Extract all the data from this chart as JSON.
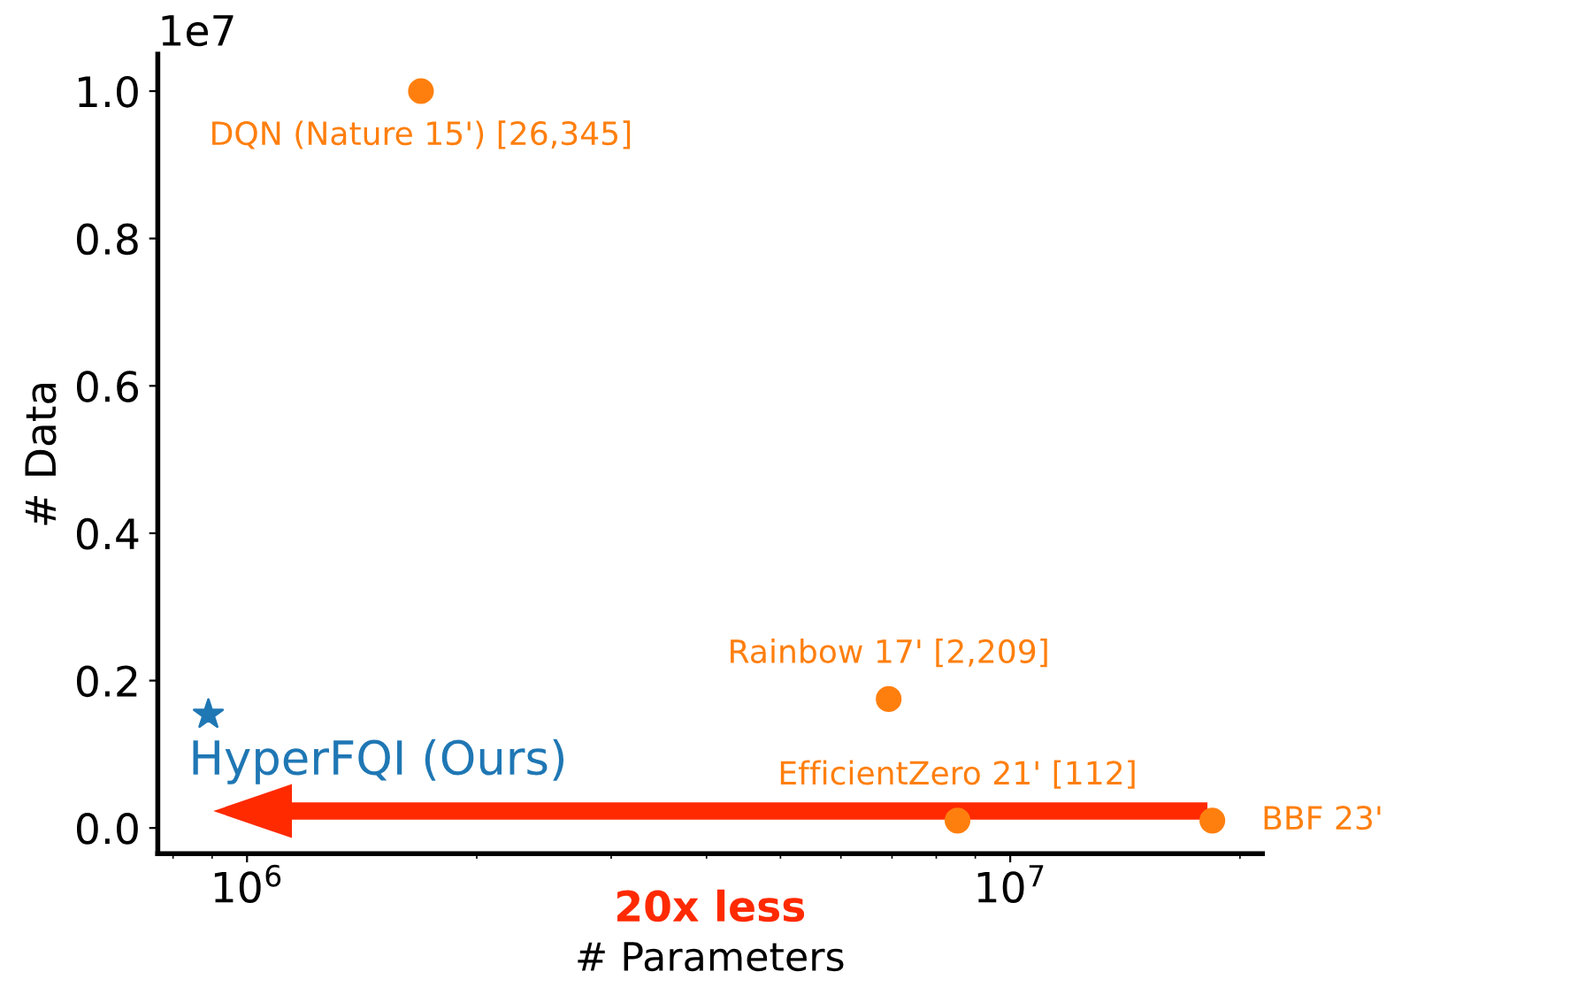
{
  "chart_data": {
    "type": "scatter",
    "xlabel": "# Parameters",
    "ylabel": "# Data",
    "log": "x",
    "xlim": [
      764000,
      21400000
    ],
    "ylim": [
      -0.035,
      1.05
    ],
    "xticks": [
      {
        "value": 1000000,
        "label": "10$^{6}$"
      },
      {
        "value": 10000000,
        "label": "10$^{7}$"
      }
    ],
    "yticks": [
      {
        "value": 0,
        "label": "0.0"
      },
      0.2,
      0.4,
      0.6,
      0.8,
      {
        "value": 1,
        "label": "1.0"
      }
    ],
    "grid": false,
    "legend": false,
    "series": [
      {
        "name": "HyperFQI (Ours)",
        "color": "#1f77b4",
        "marker": "star",
        "x": [
          890000
        ],
        "values": [
          0.154
        ]
      },
      {
        "name": "DQN (Nature 15') [26,345]",
        "color": "#ff7f0e",
        "marker": "circle",
        "x": [
          1690000
        ],
        "values": [
          1.0
        ]
      },
      {
        "name": "Rainbow 17' [2,209]",
        "color": "#ff7f0e",
        "marker": "circle",
        "x": [
          6930000
        ],
        "values": [
          0.175
        ]
      },
      {
        "name": "EfficientZero 21' [112]",
        "color": "#ff7f0e",
        "marker": "circle",
        "x": [
          8530000
        ],
        "values": [
          0.01
        ]
      },
      {
        "name": "BBF 23'",
        "color": "#ff7f0e",
        "marker": "circle",
        "x": [
          18400000
        ],
        "values": [
          0.01
        ]
      }
    ],
    "annotations": [
      "1e7",
      "20x less"
    ]
  }
}
